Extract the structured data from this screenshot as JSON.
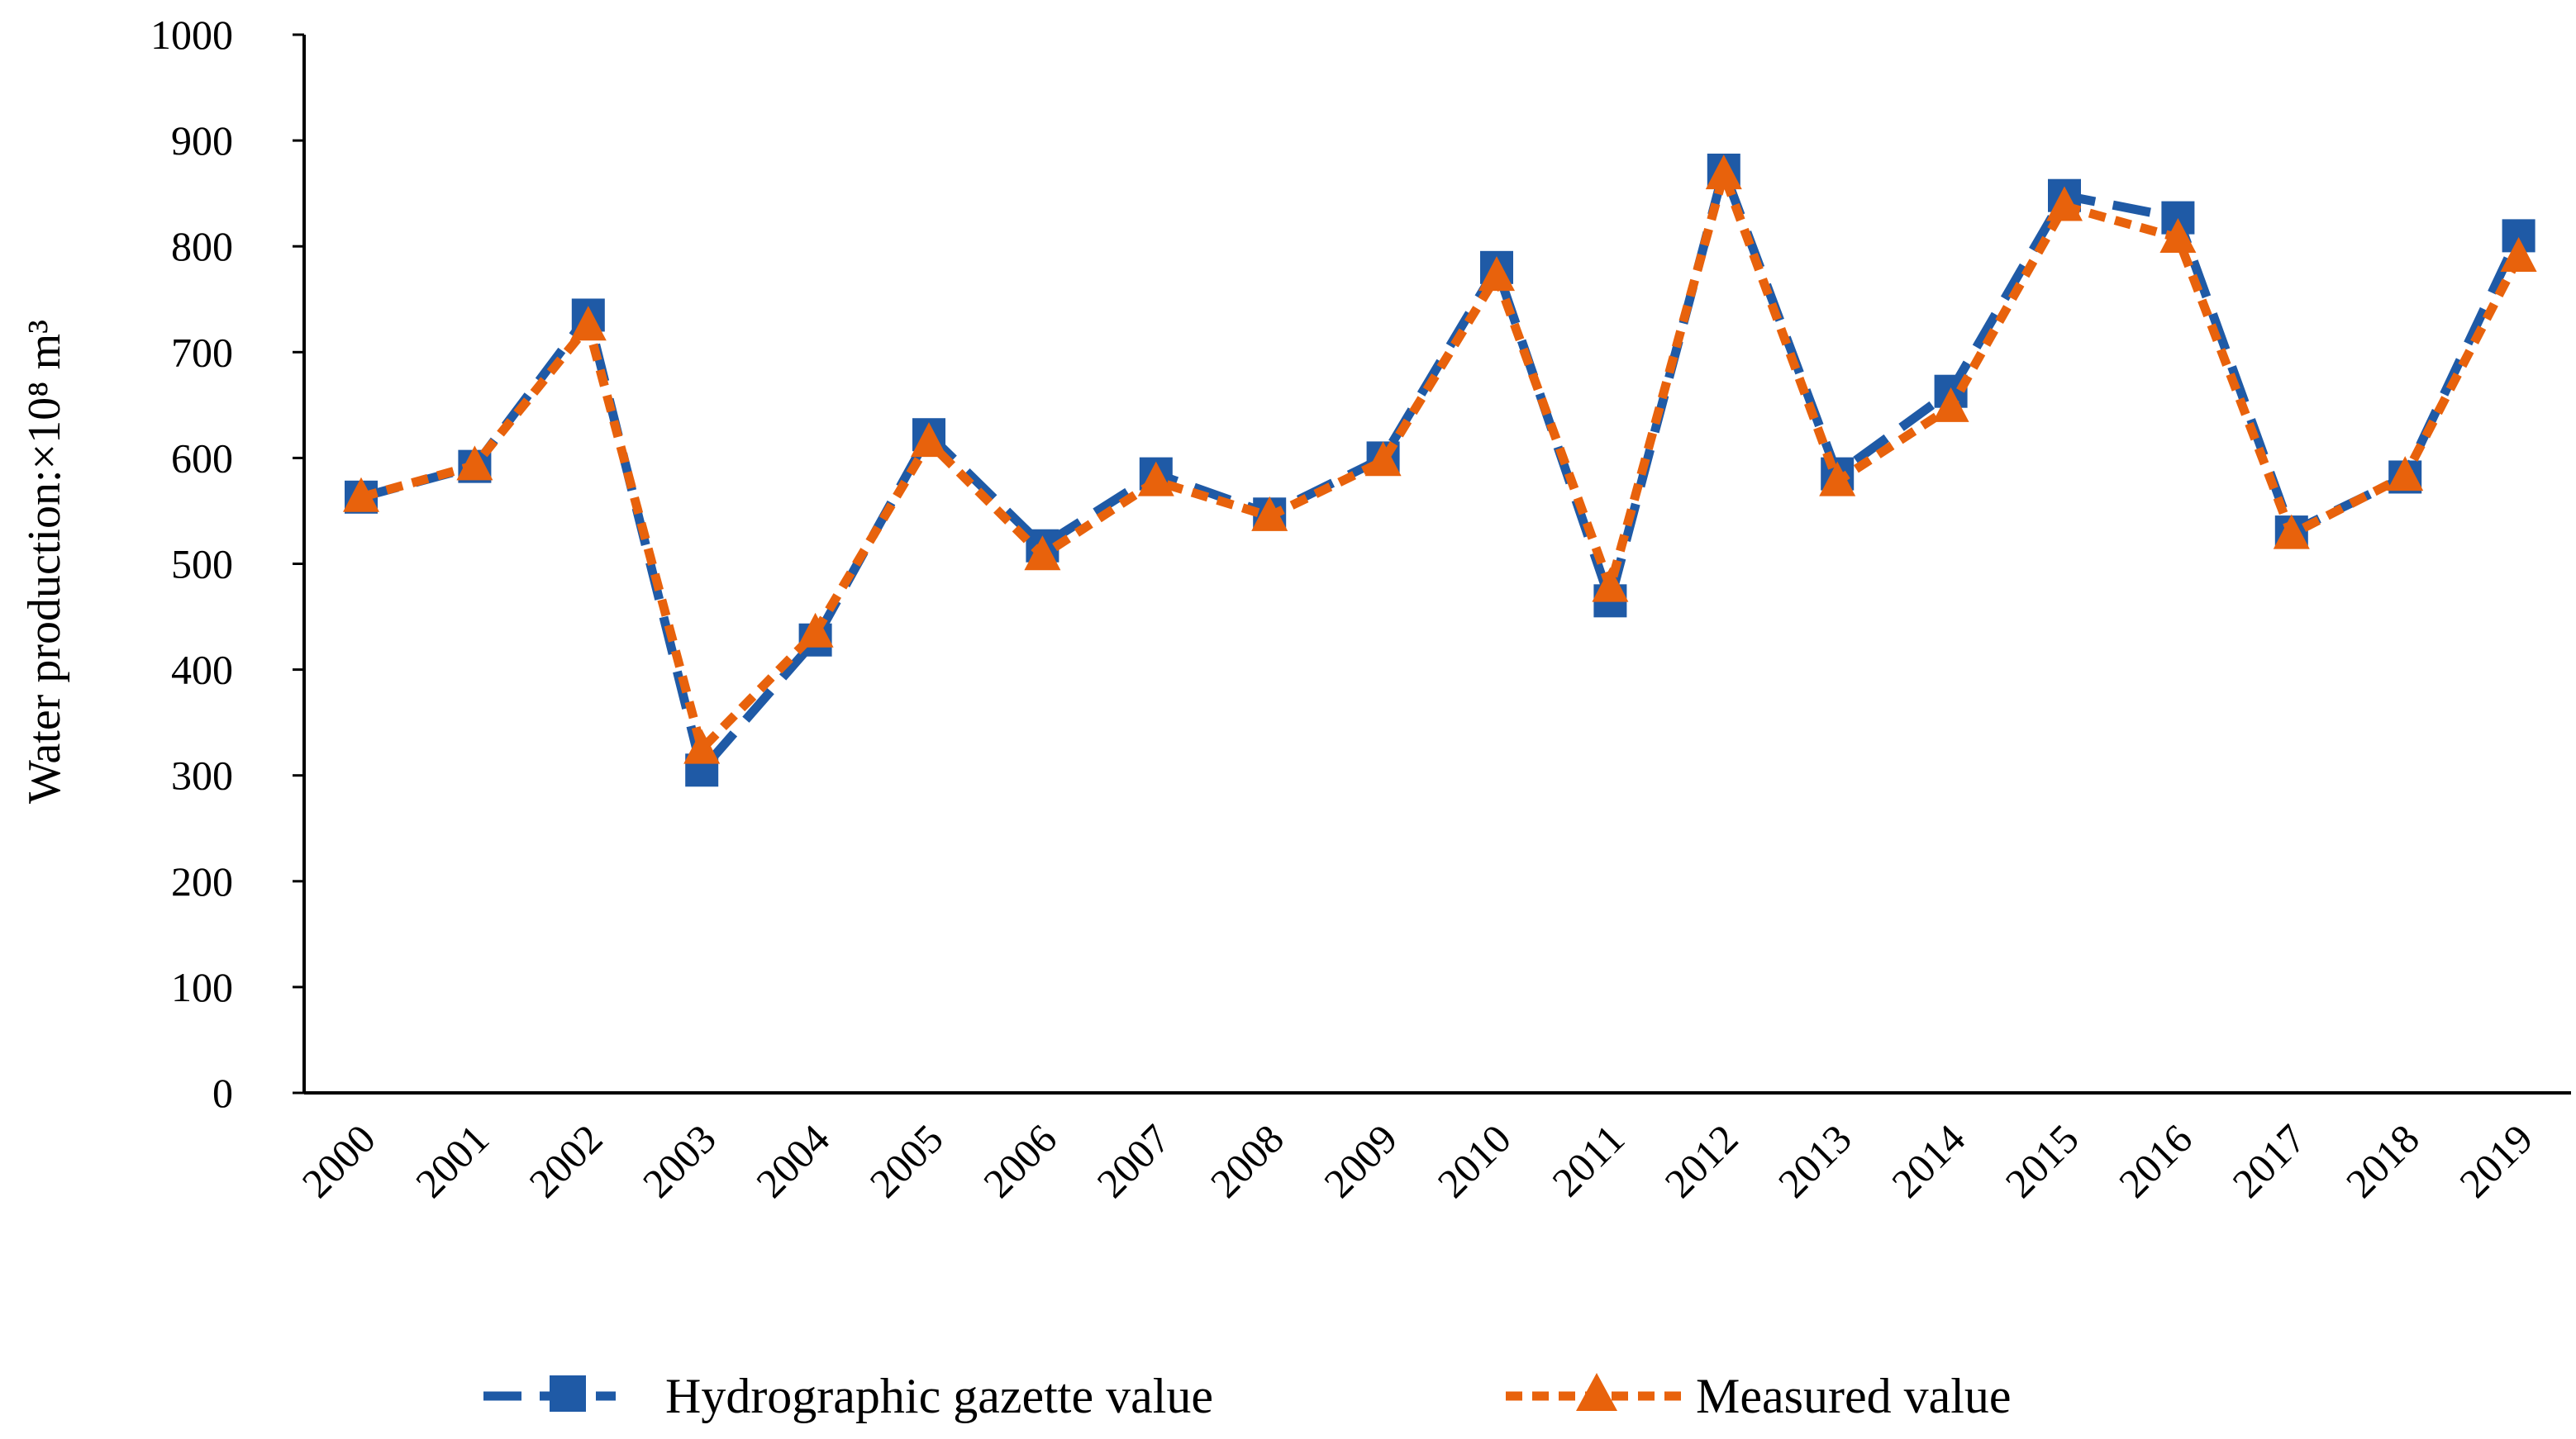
{
  "chart_data": {
    "type": "line",
    "title": "",
    "xlabel": "",
    "ylabel": "Water production:×10⁸ m³",
    "ylim": [
      0,
      1000
    ],
    "ytick_step": 100,
    "grid": false,
    "legend_position": "bottom",
    "categories": [
      "2000",
      "2001",
      "2002",
      "2003",
      "2004",
      "2005",
      "2006",
      "2007",
      "2008",
      "2009",
      "2010",
      "2011",
      "2012",
      "2013",
      "2014",
      "2015",
      "2016",
      "2017",
      "2018",
      "2019"
    ],
    "series": [
      {
        "name": "Hydrographic gazette value",
        "color": "#1f5aa6",
        "marker": "square",
        "line_style": "long-dash",
        "values": [
          563,
          592,
          735,
          305,
          428,
          622,
          517,
          585,
          547,
          600,
          780,
          465,
          872,
          585,
          663,
          848,
          827,
          530,
          582,
          810
        ]
      },
      {
        "name": "Measured value",
        "color": "#e8620c",
        "marker": "triangle",
        "line_style": "short-dash",
        "values": [
          563,
          593,
          725,
          325,
          435,
          615,
          508,
          578,
          545,
          597,
          772,
          478,
          868,
          578,
          648,
          838,
          808,
          528,
          583,
          790
        ]
      }
    ]
  }
}
